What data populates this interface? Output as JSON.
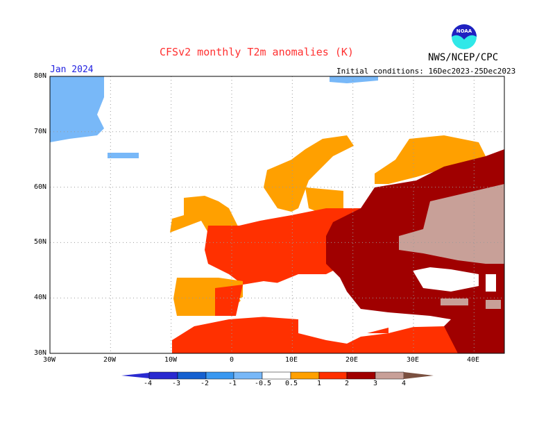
{
  "header": {
    "title": "CFSv2 monthly T2m anomalies (K)",
    "agency": "NWS/NCEP/CPC",
    "logo_text": "NOAA",
    "valid_month": "Jan 2024",
    "initial_conditions": "Initial conditions: 16Dec2023-25Dec2023"
  },
  "map": {
    "region": "Europe",
    "variable": "T2m anomaly",
    "units": "K",
    "lat_labels": [
      "80N",
      "70N",
      "60N",
      "50N",
      "40N",
      "30N"
    ],
    "lon_labels": [
      "30W",
      "20W",
      "10W",
      "0",
      "10E",
      "20E",
      "30E",
      "40E"
    ]
  },
  "colorbar": {
    "labels": [
      "-4",
      "-3",
      "-2",
      "-1",
      "-0.5",
      "0.5",
      "1",
      "2",
      "3",
      "4"
    ],
    "colors": [
      "#2a2ad0",
      "#1560d0",
      "#3a98f0",
      "#78b8f8",
      "#ffffff",
      "#ffa000",
      "#ff3000",
      "#a00000",
      "#c8a098",
      "#7a5040"
    ]
  }
}
